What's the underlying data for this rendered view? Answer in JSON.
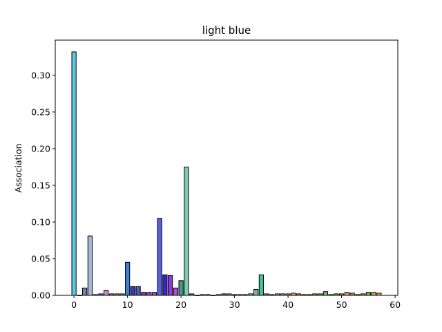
{
  "chart_data": {
    "type": "bar",
    "title": "light blue",
    "xlabel": "",
    "ylabel": "Association",
    "xlim": [
      -3.5,
      60.5
    ],
    "ylim": [
      0,
      0.348
    ],
    "xticks": [
      0,
      10,
      20,
      30,
      40,
      50,
      60
    ],
    "yticks": [
      0.0,
      0.05,
      0.1,
      0.15,
      0.2,
      0.25,
      0.3
    ],
    "ytick_labels": [
      "0.00",
      "0.05",
      "0.10",
      "0.15",
      "0.20",
      "0.25",
      "0.30"
    ],
    "grid": false,
    "x": [
      0,
      1,
      2,
      3,
      4,
      5,
      6,
      7,
      8,
      9,
      10,
      11,
      12,
      13,
      14,
      15,
      16,
      17,
      18,
      19,
      20,
      21,
      22,
      23,
      24,
      25,
      26,
      27,
      28,
      29,
      30,
      31,
      32,
      33,
      34,
      35,
      36,
      37,
      38,
      39,
      40,
      41,
      42,
      43,
      44,
      45,
      46,
      47,
      48,
      49,
      50,
      51,
      52,
      53,
      54,
      55,
      56,
      57
    ],
    "values": [
      0.332,
      0.0,
      0.01,
      0.081,
      0.001,
      0.002,
      0.007,
      0.002,
      0.002,
      0.002,
      0.045,
      0.012,
      0.012,
      0.004,
      0.004,
      0.004,
      0.105,
      0.028,
      0.027,
      0.01,
      0.02,
      0.175,
      0.002,
      0.0,
      0.001,
      0.001,
      0.0,
      0.001,
      0.002,
      0.002,
      0.001,
      0.001,
      0.001,
      0.002,
      0.008,
      0.028,
      0.002,
      0.001,
      0.002,
      0.002,
      0.002,
      0.003,
      0.002,
      0.001,
      0.001,
      0.002,
      0.002,
      0.005,
      0.001,
      0.002,
      0.002,
      0.004,
      0.003,
      0.001,
      0.002,
      0.004,
      0.004,
      0.003
    ],
    "colors": [
      "#5ac8e0",
      "#8a7fbf",
      "#7a7fa8",
      "#a7b5d8",
      "#8a9ad0",
      "#7a6fb0",
      "#c08ad8",
      "#9a8fb0",
      "#b08ac8",
      "#8a8fb0",
      "#3f7fd8",
      "#3a3aa8",
      "#5a58b8",
      "#8a3ac0",
      "#a048c8",
      "#d040c0",
      "#5560e0",
      "#3a28c0",
      "#8a3ae0",
      "#b848d8",
      "#3fa080",
      "#7fc8b8",
      "#4a8a80",
      "#6aa090",
      "#3a8a90",
      "#6a9aa0",
      "#7ab8c0",
      "#4a8a70",
      "#5a9a80",
      "#8ab090",
      "#6aa080",
      "#5ab8a0",
      "#7ac0a0",
      "#9ad0a8",
      "#7ab890",
      "#3ac88a",
      "#6ab070",
      "#7ab880",
      "#9ac888",
      "#c0a870",
      "#d8a070",
      "#e8a070",
      "#c09860",
      "#a8a860",
      "#b8b070",
      "#98a860",
      "#88b850",
      "#6ac858",
      "#9ab870",
      "#b8a860",
      "#c8a050",
      "#e0a050",
      "#d09048",
      "#a8b040",
      "#98c050",
      "#78c040",
      "#d8a840",
      "#e8a040"
    ]
  }
}
